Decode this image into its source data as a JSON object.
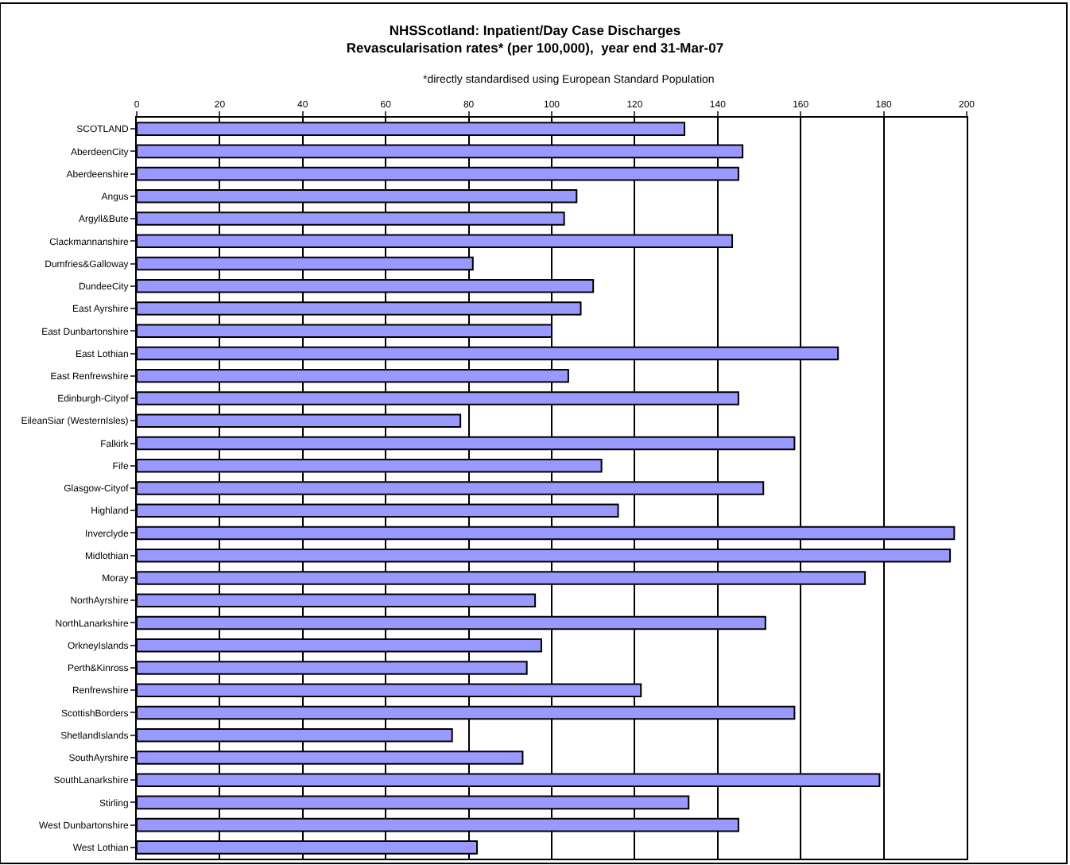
{
  "chart_data": {
    "type": "bar",
    "orientation": "horizontal",
    "title": "NHSScotland: Inpatient/Day Case Discharges",
    "subtitle": "Revascularisation rates* (per 100,000),  year end 31-Mar-07",
    "annotations": [
      "*directly standardised using European Standard Population"
    ],
    "categories": [
      "SCOTLAND",
      "AberdeenCity",
      "Aberdeenshire",
      "Angus",
      "Argyll&Bute",
      "Clackmannanshire",
      "Dumfries&Galloway",
      "DundeeCity",
      "East Ayrshire",
      "East Dunbartonshire",
      "East Lothian",
      "East Renfrewshire",
      "Edinburgh-Cityof",
      "EileanSiar (WesternIsles)",
      "Falkirk",
      "Fife",
      "Glasgow-Cityof",
      "Highland",
      "Inverclyde",
      "Midlothian",
      "Moray",
      "NorthAyrshire",
      "NorthLanarkshire",
      "OrkneyIslands",
      "Perth&Kinross",
      "Renfrewshire",
      "ScottishBorders",
      "ShetlandIslands",
      "SouthAyrshire",
      "SouthLanarkshire",
      "Stirling",
      "West Dunbartonshire",
      "West Lothian"
    ],
    "values": [
      132,
      146,
      145,
      106,
      103,
      143.5,
      81,
      110,
      107,
      100,
      169,
      104,
      145,
      78,
      158.5,
      112,
      151,
      116,
      197,
      196,
      175.5,
      96,
      151.5,
      97.5,
      94,
      121.5,
      158.5,
      76,
      93,
      179,
      133,
      145,
      82
    ],
    "color": "#9999ff",
    "xlim": [
      0,
      200
    ],
    "xticks": [
      0,
      20,
      40,
      60,
      80,
      100,
      120,
      140,
      160,
      180,
      200
    ],
    "grid": "x"
  }
}
